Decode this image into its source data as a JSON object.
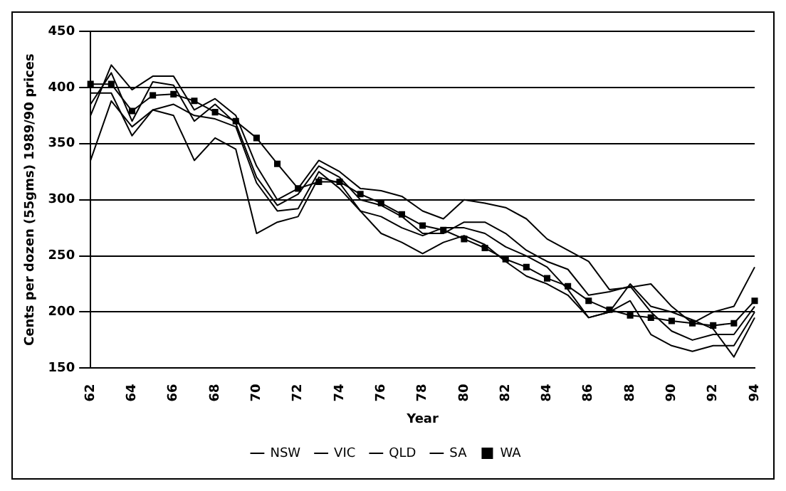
{
  "chart_data": {
    "type": "line",
    "xlabel": "Year",
    "ylabel": "Cents per dozen (55gms) 1989/90 prices",
    "categories": [
      "62",
      null,
      "64",
      null,
      "66",
      null,
      "68",
      null,
      "70",
      null,
      "72",
      null,
      "74",
      null,
      "76",
      null,
      "78",
      null,
      "80",
      null,
      "82",
      null,
      "84",
      null,
      "86",
      null,
      "88",
      null,
      "90",
      null,
      "92",
      null,
      "94"
    ],
    "ylim": [
      150,
      450
    ],
    "yticks": [
      150,
      200,
      250,
      300,
      350,
      400,
      450
    ],
    "grid": "y",
    "legend": "bottom",
    "line_style": "solid",
    "series": [
      {
        "name": "NSW",
        "color": "#000000",
        "marker": "none",
        "values": [
          375,
          420,
          398,
          410,
          410,
          380,
          390,
          375,
          330,
          300,
          310,
          335,
          325,
          310,
          308,
          303,
          290,
          283,
          300,
          297,
          293,
          283,
          265,
          255,
          245,
          220,
          222,
          225,
          205,
          190,
          200,
          205,
          240
        ]
      },
      {
        "name": "VIC",
        "color": "#000000",
        "marker": "none",
        "values": [
          385,
          413,
          370,
          405,
          402,
          370,
          385,
          368,
          320,
          295,
          305,
          330,
          320,
          300,
          295,
          285,
          270,
          270,
          280,
          280,
          270,
          255,
          245,
          238,
          215,
          218,
          223,
          200,
          183,
          175,
          180,
          180,
          205
        ]
      },
      {
        "name": "QLD",
        "color": "#000000",
        "marker": "none",
        "values": [
          335,
          388,
          365,
          380,
          375,
          335,
          355,
          345,
          270,
          280,
          285,
          320,
          315,
          290,
          270,
          262,
          252,
          262,
          268,
          260,
          245,
          232,
          225,
          215,
          195,
          200,
          225,
          205,
          200,
          193,
          185,
          160,
          195
        ]
      },
      {
        "name": "SA",
        "color": "#000000",
        "marker": "none",
        "values": [
          395,
          395,
          357,
          380,
          385,
          375,
          372,
          365,
          315,
          290,
          292,
          325,
          310,
          290,
          285,
          275,
          268,
          275,
          275,
          270,
          258,
          250,
          240,
          220,
          195,
          200,
          210,
          180,
          170,
          165,
          170,
          170,
          200
        ]
      },
      {
        "name": "WA",
        "color": "#000000",
        "marker": "square",
        "values": [
          403,
          403,
          379,
          393,
          394,
          388,
          378,
          370,
          355,
          332,
          310,
          316,
          316,
          305,
          297,
          287,
          277,
          273,
          265,
          257,
          247,
          240,
          230,
          223,
          210,
          202,
          197,
          195,
          192,
          190,
          188,
          190,
          210
        ]
      }
    ]
  }
}
